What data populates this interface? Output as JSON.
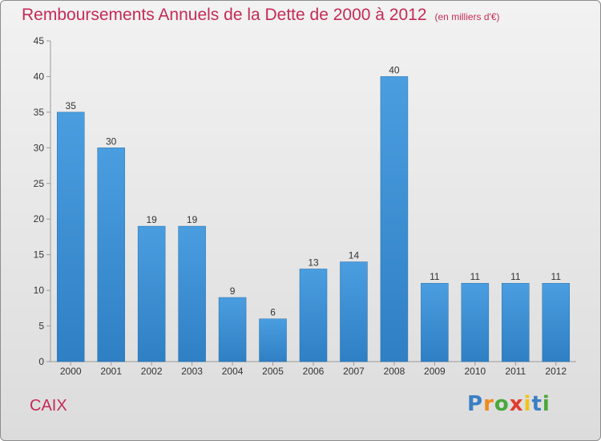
{
  "title": "Remboursements Annuels de la Dette de 2000 à 2012",
  "unit_note": "(en milliers d'€)",
  "commune": "CAIX",
  "logo": {
    "letters": [
      "P",
      "r",
      "o",
      "x",
      "i",
      "t",
      "i"
    ],
    "colors": [
      "#3a7fc4",
      "#f08a1c",
      "#4aa83a",
      "#e23b2e",
      "#f0c419",
      "#3a7fc4",
      "#4aa83a"
    ]
  },
  "colors": {
    "bar": "#4a9ee0",
    "bar_dark": "#2f7fc4",
    "title": "#c42b57"
  },
  "chart_data": {
    "type": "bar",
    "title": "Remboursements Annuels de la Dette de 2000 à 2012",
    "xlabel": "",
    "ylabel": "",
    "categories": [
      "2000",
      "2001",
      "2002",
      "2003",
      "2004",
      "2005",
      "2006",
      "2007",
      "2008",
      "2009",
      "2010",
      "2011",
      "2012"
    ],
    "values": [
      35,
      30,
      19,
      19,
      9,
      6,
      13,
      14,
      40,
      11,
      11,
      11,
      11
    ],
    "labels": [
      "35",
      "30",
      "19",
      "19",
      "9",
      "6",
      "13",
      "14",
      "40",
      "11",
      "11",
      "11",
      "11"
    ],
    "ylim": [
      0,
      45
    ],
    "yticks": [
      0,
      5,
      10,
      15,
      20,
      25,
      30,
      35,
      40,
      45
    ],
    "grid": false,
    "legend": "none"
  }
}
